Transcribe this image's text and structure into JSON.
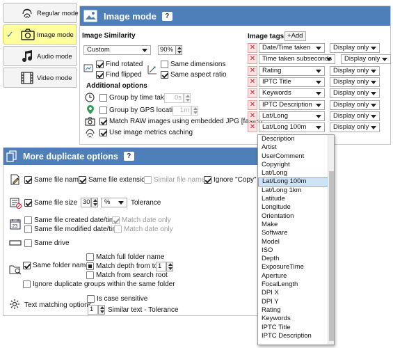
{
  "mode_tabs": [
    {
      "label": "Regular mode",
      "icon": "fingerprint-icon",
      "selected": false
    },
    {
      "label": "Image mode",
      "icon": "camera-icon",
      "selected": true
    },
    {
      "label": "Audio mode",
      "icon": "music-note-icon",
      "selected": false
    },
    {
      "label": "Video mode",
      "icon": "film-strip-icon",
      "selected": false
    }
  ],
  "image_panel": {
    "title": "Image mode",
    "help": "?",
    "similarity": {
      "heading": "Image Similarity",
      "preset": "Custom",
      "percent": "90%",
      "find_rotated": {
        "label": "Find rotated",
        "checked": true
      },
      "find_flipped": {
        "label": "Find flipped",
        "checked": true
      },
      "same_dimensions": {
        "label": "Same dimensions",
        "checked": false
      },
      "same_aspect_ratio": {
        "label": "Same aspect ratio",
        "checked": true
      }
    },
    "additional": {
      "heading": "Additional options",
      "group_time": {
        "label": "Group by time taken",
        "checked": false,
        "value": "0s"
      },
      "group_gps": {
        "label": "Group by GPS location",
        "checked": false,
        "value": "1m"
      },
      "match_raw": {
        "label": "Match RAW images using embedded JPG [faster]",
        "checked": true
      },
      "metrics_cache": {
        "label": "Use image metrics caching",
        "checked": true
      }
    },
    "tags": {
      "heading": "Image tags",
      "add_label": "Add",
      "rows": [
        {
          "tag": "Date/Time taken",
          "mode": "Display only"
        },
        {
          "tag": "Time taken subseconds",
          "mode": "Display only"
        },
        {
          "tag": "Rating",
          "mode": "Display only"
        },
        {
          "tag": "IPTC Title",
          "mode": "Display only"
        },
        {
          "tag": "Keywords",
          "mode": "Display only"
        },
        {
          "tag": "IPTC Description",
          "mode": "Display only"
        },
        {
          "tag": "Lat/Long",
          "mode": "Display only"
        },
        {
          "tag": "Lat/Long 100m",
          "mode": "Display only"
        }
      ]
    }
  },
  "dropdown": {
    "items": [
      "Description",
      "Artist",
      "UserComment",
      "Copyright",
      "Lat/Long",
      "Lat/Long 100m",
      "Lat/Long 1km",
      "Latitude",
      "Longitude",
      "Orientation",
      "Make",
      "Software",
      "Model",
      "ISO",
      "Depth",
      "ExposureTime",
      "Aperture",
      "FocalLength",
      "DPI X",
      "DPI Y",
      "Rating",
      "Keywords",
      "IPTC Title",
      "IPTC Description"
    ],
    "highlighted": "Lat/Long 100m"
  },
  "more_options": {
    "title": "More duplicate options",
    "help": "?",
    "same_file_name": {
      "label": "Same file name",
      "checked": true
    },
    "same_file_extension": {
      "label": "Same file extension",
      "checked": true
    },
    "similar_file_names": {
      "label": "Similar file names",
      "checked": false
    },
    "ignore_copy": {
      "label": "Ignore \"Copy\" pa",
      "checked": true
    },
    "same_file_size": {
      "label": "Same file size",
      "checked": true
    },
    "size_value": "30",
    "size_unit": "%",
    "tolerance_label": "Tolerance",
    "same_created": {
      "label": "Same file created date/time",
      "checked": false
    },
    "created_match_date": {
      "label": "Match date only",
      "checked": true
    },
    "same_modified": {
      "label": "Same file modified date/time",
      "checked": false
    },
    "modified_match_date": {
      "label": "Match date only",
      "checked": false
    },
    "same_drive": {
      "label": "Same drive",
      "checked": false
    },
    "same_folder_name": {
      "label": "Same folder name",
      "checked": true
    },
    "match_full_folder": {
      "label": "Match full folder name",
      "checked": false
    },
    "match_depth": {
      "label": "Match depth from top",
      "checked": true,
      "value": "1"
    },
    "match_search_root": {
      "label": "Match from search root",
      "checked": false
    },
    "ignore_same_folder": {
      "label": "Ignore duplicate groups within the same folder",
      "checked": false
    },
    "text_matching_label": "Text matching options",
    "case_sensitive": {
      "label": "Is case sensitive",
      "checked": false
    },
    "similar_text_value": "1",
    "similar_text_label": "Similar text - Tolerance"
  }
}
